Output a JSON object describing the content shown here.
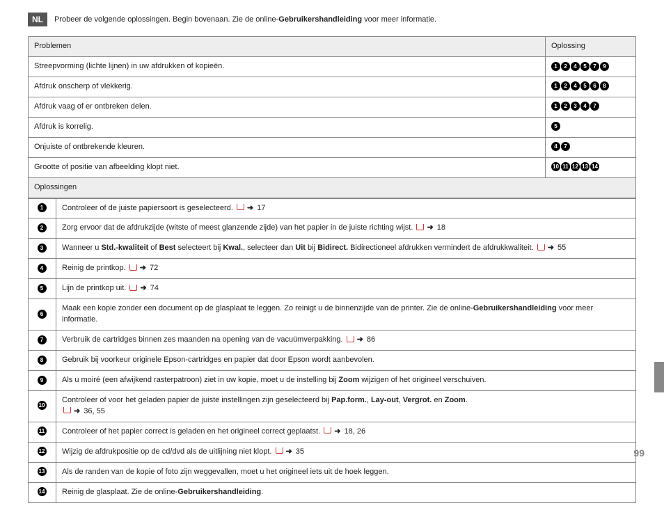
{
  "lang_badge": "NL",
  "intro": {
    "pre": "Probeer de volgende oplossingen. Begin bovenaan. Zie de online-",
    "bold": "Gebruikershandleiding",
    "post": " voor meer informatie."
  },
  "headers": {
    "problems": "Problemen",
    "solution": "Oplossing",
    "solutions_label": "Oplossingen"
  },
  "problems": [
    {
      "text": "Streepvorming (lichte lijnen) in uw afdrukken of kopieën.",
      "codes": [
        1,
        2,
        4,
        5,
        7,
        9
      ]
    },
    {
      "text": "Afdruk onscherp of vlekkerig.",
      "codes": [
        1,
        2,
        4,
        5,
        6,
        8
      ]
    },
    {
      "text": "Afdruk vaag of er ontbreken delen.",
      "codes": [
        1,
        2,
        3,
        4,
        7
      ]
    },
    {
      "text": "Afdruk is korrelig.",
      "codes": [
        5
      ]
    },
    {
      "text": "Onjuiste of ontbrekende kleuren.",
      "codes": [
        4,
        7
      ]
    },
    {
      "text": "Grootte of positie van afbeelding klopt niet.",
      "codes": [
        10,
        11,
        12,
        13,
        14
      ]
    }
  ],
  "solutions": [
    {
      "n": 1,
      "parts": [
        {
          "t": "Controleer of de juiste papiersoort is geselecteerd. "
        },
        {
          "ref": "17"
        }
      ]
    },
    {
      "n": 2,
      "parts": [
        {
          "t": "Zorg ervoor dat de afdrukzijde (witste of meest glanzende zijde) van het papier in de juiste richting wijst. "
        },
        {
          "ref": "18"
        }
      ]
    },
    {
      "n": 3,
      "parts": [
        {
          "t": "Wanneer u "
        },
        {
          "b": "Std.-kwaliteit"
        },
        {
          "t": " of "
        },
        {
          "b": "Best"
        },
        {
          "t": " selecteert bij "
        },
        {
          "b": "Kwal."
        },
        {
          "t": ", selecteer dan "
        },
        {
          "b": "Uit"
        },
        {
          "t": " bij "
        },
        {
          "b": "Bidirect."
        },
        {
          "t": " Bidirectioneel afdrukken vermindert de afdrukkwaliteit. "
        },
        {
          "ref": "55"
        }
      ]
    },
    {
      "n": 4,
      "parts": [
        {
          "t": "Reinig de printkop. "
        },
        {
          "ref": "72"
        }
      ]
    },
    {
      "n": 5,
      "parts": [
        {
          "t": "Lijn de printkop uit. "
        },
        {
          "ref": "74"
        }
      ]
    },
    {
      "n": 6,
      "parts": [
        {
          "t": "Maak een kopie zonder een document op de glasplaat te leggen. Zo reinigt u de binnenzijde van de printer. Zie de online-"
        },
        {
          "b": "Gebruikershandleiding"
        },
        {
          "t": " voor meer informatie."
        }
      ]
    },
    {
      "n": 7,
      "parts": [
        {
          "t": "Verbruik de cartridges binnen zes maanden na opening van de vacuümverpakking. "
        },
        {
          "ref": "86"
        }
      ]
    },
    {
      "n": 8,
      "parts": [
        {
          "t": "Gebruik bij voorkeur originele Epson-cartridges en papier dat door Epson wordt aanbevolen."
        }
      ]
    },
    {
      "n": 9,
      "parts": [
        {
          "t": "Als u moiré (een afwijkend rasterpatroon) ziet in uw kopie, moet u de instelling bij "
        },
        {
          "b": "Zoom"
        },
        {
          "t": " wijzigen of het origineel verschuiven."
        }
      ]
    },
    {
      "n": 10,
      "parts": [
        {
          "t": "Controleer of voor het geladen papier de juiste instellingen zijn geselecteerd bij "
        },
        {
          "b": "Pap.form."
        },
        {
          "t": ", "
        },
        {
          "b": "Lay-out"
        },
        {
          "t": ", "
        },
        {
          "b": "Vergrot."
        },
        {
          "t": " en "
        },
        {
          "b": "Zoom"
        },
        {
          "t": ". "
        },
        {
          "br": true
        },
        {
          "ref": "36, 55"
        }
      ]
    },
    {
      "n": 11,
      "parts": [
        {
          "t": "Controleer of het papier correct is geladen en het origineel correct geplaatst. "
        },
        {
          "ref": "18, 26"
        }
      ]
    },
    {
      "n": 12,
      "parts": [
        {
          "t": "Wijzig de afdrukpositie op de cd/dvd als de uitlijning niet klopt. "
        },
        {
          "ref": "35"
        }
      ]
    },
    {
      "n": 13,
      "parts": [
        {
          "t": "Als de randen van de kopie of foto zijn weggevallen, moet u het origineel iets uit de hoek leggen."
        }
      ]
    },
    {
      "n": 14,
      "parts": [
        {
          "t": "Reinig de glasplaat. Zie de online-"
        },
        {
          "b": "Gebruikershandleiding"
        },
        {
          "t": "."
        }
      ]
    }
  ],
  "page_number": "99"
}
